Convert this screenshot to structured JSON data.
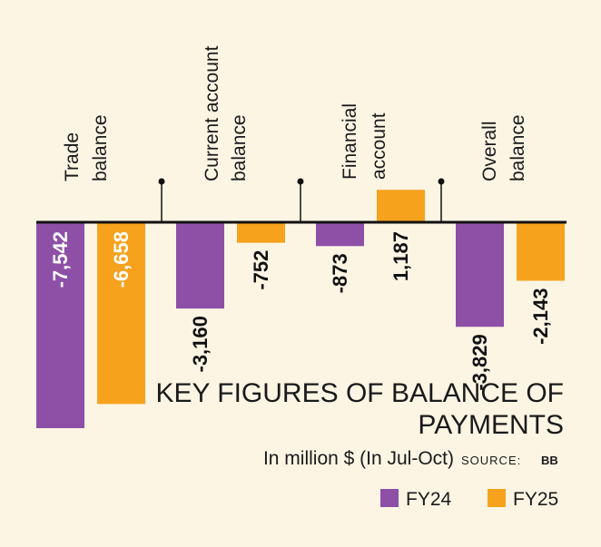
{
  "chart_data": {
    "type": "bar",
    "title_line1": "KEY FIGURES OF BALANCE OF",
    "title_line2": "PAYMENTS",
    "subtitle": "In million $ (In Jul-Oct)",
    "source_label": "SOURCE:",
    "source_value": "BB",
    "categories": [
      [
        "Trade",
        "balance"
      ],
      [
        "Current account",
        "balance"
      ],
      [
        "Financial",
        "account"
      ],
      [
        "Overall",
        "balance"
      ]
    ],
    "series": [
      {
        "name": "FY24",
        "color": "#8e4fa6",
        "values": [
          -7542,
          -3160,
          -873,
          -3829
        ],
        "labels": [
          "-7,542",
          "-3,160",
          "-873",
          "-3,829"
        ]
      },
      {
        "name": "FY25",
        "color": "#f6a21d",
        "values": [
          -6658,
          -752,
          1187,
          -2143
        ],
        "labels": [
          "-6,658",
          "-752",
          "1,187",
          "-2,143"
        ]
      }
    ],
    "ylim": [
      -7542,
      1187
    ],
    "legend_position": "bottom-right",
    "grid": false
  }
}
